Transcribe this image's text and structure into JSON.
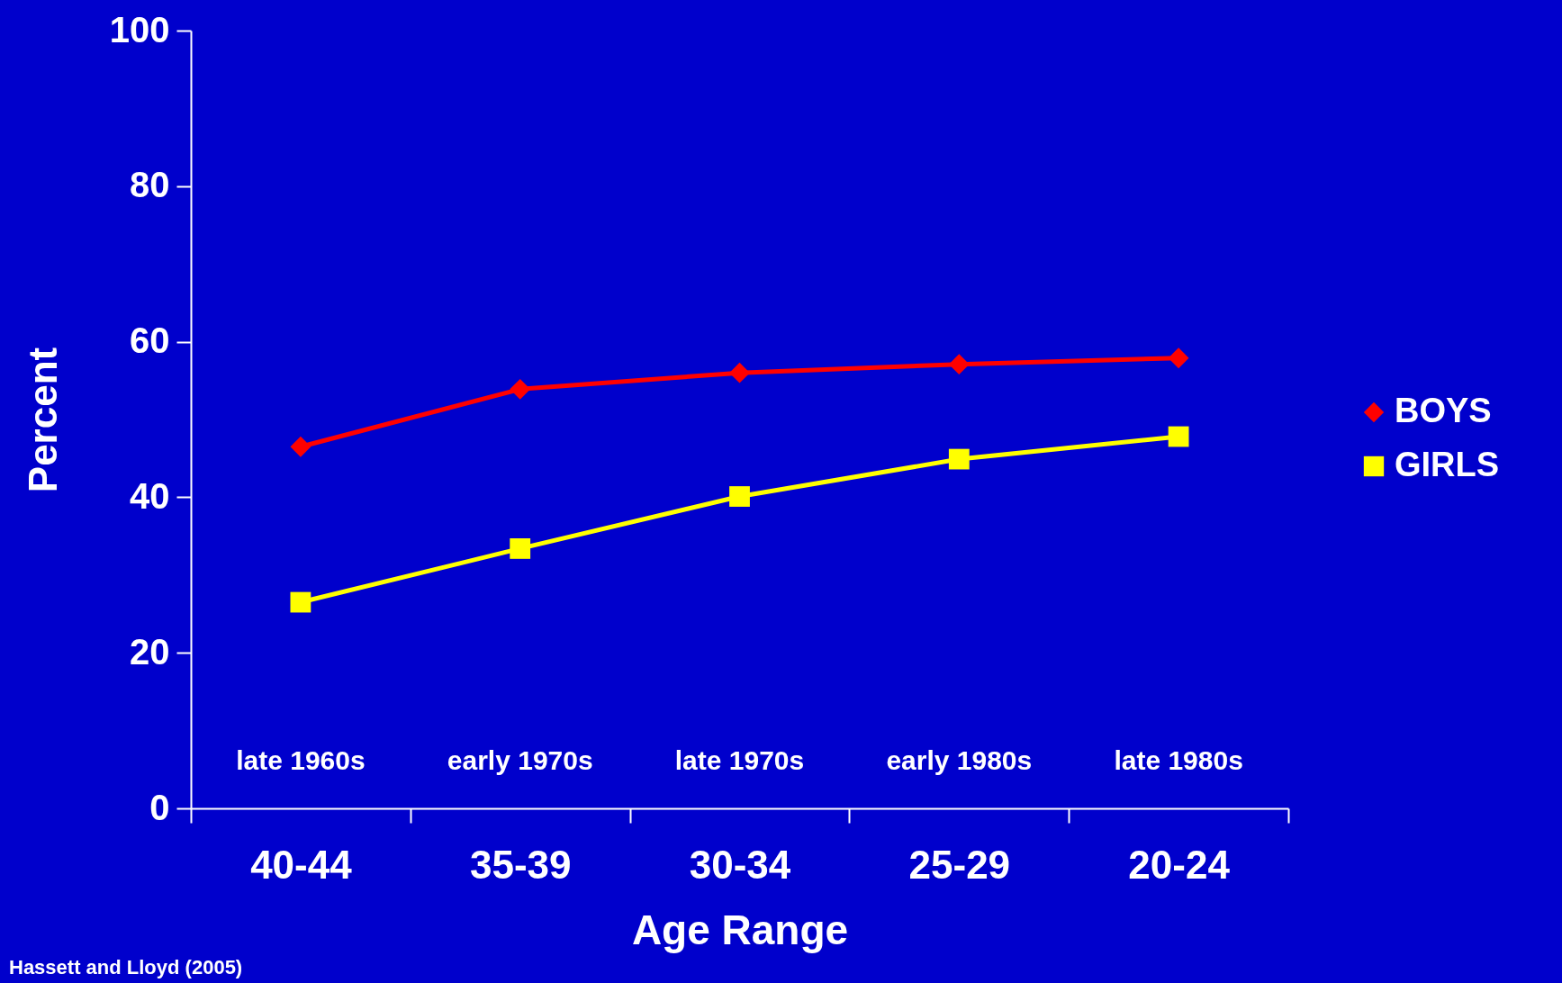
{
  "chart_data": {
    "type": "line",
    "xlabel": "Age Range",
    "ylabel": "Percent",
    "categories": [
      "40-44",
      "35-39",
      "30-34",
      "25-29",
      "20-24"
    ],
    "series": [
      {
        "name": "BOYS",
        "color": "#ff0000",
        "marker": "diamond",
        "values": [
          46.5,
          53.9,
          56.0,
          57.1,
          57.9
        ]
      },
      {
        "name": "GIRLS",
        "color": "#ffff00",
        "marker": "square",
        "values": [
          26.5,
          33.4,
          40.1,
          44.9,
          47.8
        ]
      }
    ],
    "ylim": [
      0,
      100
    ],
    "yticks": [
      0,
      20,
      40,
      60,
      80,
      100
    ],
    "grid": false,
    "legend": "right",
    "line_style": "solid",
    "annotations": [
      "late 1960s",
      "early 1970s",
      "late 1970s",
      "early 1980s",
      "late 1980s",
      "Hassett and Lloyd (2005)"
    ]
  }
}
